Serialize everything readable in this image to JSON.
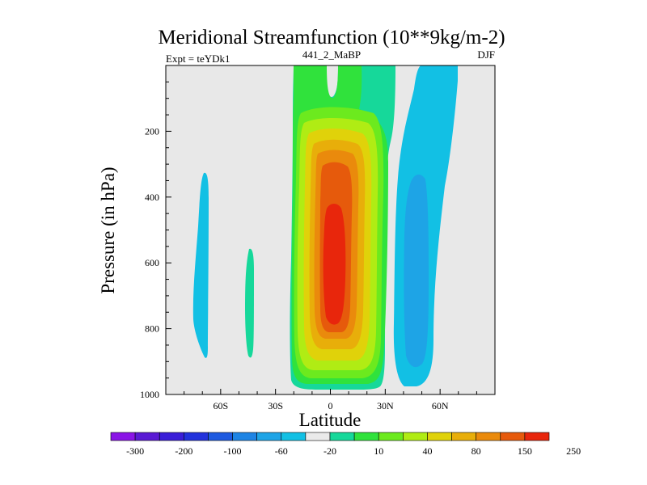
{
  "chart_data": {
    "type": "contour",
    "title": "Meridional Streamfunction (10**9kg/m-2)",
    "left_label": "Expt = teYDk1",
    "center_label": "441_2_MaBP",
    "right_label": "DJF",
    "xlabel": "Latitude",
    "ylabel": "Pressure (in hPa)",
    "xlim": [
      -90,
      90
    ],
    "ylim": [
      1000,
      0
    ],
    "x_ticks": [
      {
        "value": -60,
        "label": "60S"
      },
      {
        "value": -30,
        "label": "30S"
      },
      {
        "value": 0,
        "label": "0"
      },
      {
        "value": 30,
        "label": "30N"
      },
      {
        "value": 60,
        "label": "60N"
      }
    ],
    "y_ticks": [
      {
        "value": 200,
        "label": "200"
      },
      {
        "value": 400,
        "label": "400"
      },
      {
        "value": 600,
        "label": "600"
      },
      {
        "value": 800,
        "label": "800"
      },
      {
        "value": 1000,
        "label": "1000"
      }
    ],
    "colorbar": {
      "colors": [
        "#8a14e6",
        "#5a1ad4",
        "#3a1ed8",
        "#2232dc",
        "#1e5ae0",
        "#1e84e4",
        "#1ea4e6",
        "#12c0e4",
        "#eaeaea",
        "#16d89a",
        "#30e23c",
        "#6cea1e",
        "#b0ec14",
        "#e0d20a",
        "#e8ae0a",
        "#ea8a0c",
        "#e65a0c",
        "#e8260c"
      ],
      "labels": [
        "-300",
        "-200",
        "-100",
        "-60",
        "-20",
        "10",
        "40",
        "80",
        "150",
        "250"
      ]
    },
    "features": [
      {
        "name": "main-positive-cell",
        "lat_center": 0,
        "lat_range": [
          -20,
          30
        ],
        "p_range": [
          0,
          1000
        ],
        "max_level": "250"
      },
      {
        "name": "northern-negative-cell",
        "lat_center": 45,
        "lat_range": [
          35,
          70
        ],
        "p_range": [
          0,
          950
        ],
        "min_level": "-60"
      },
      {
        "name": "southern-negative-patch",
        "lat_center": -70,
        "lat_range": [
          -74,
          -67
        ],
        "p_range": [
          320,
          900
        ],
        "level": "-20"
      },
      {
        "name": "southern-positive-patch",
        "lat_center": -42,
        "lat_range": [
          -45,
          -40
        ],
        "p_range": [
          570,
          890
        ],
        "level": "10"
      }
    ]
  }
}
